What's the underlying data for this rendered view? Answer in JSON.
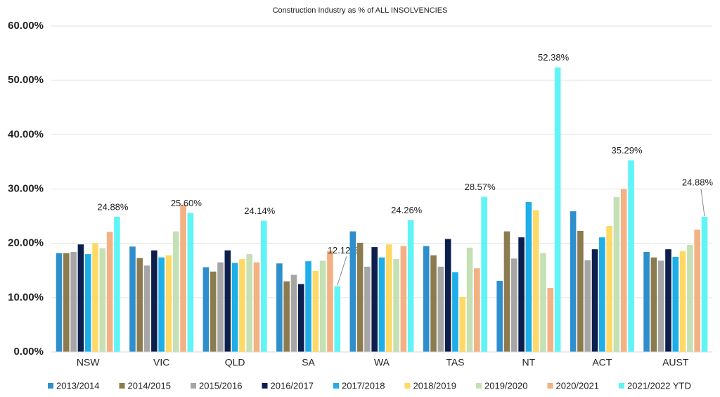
{
  "chart_data": {
    "type": "bar",
    "title": "Construction Industry as % of ALL INSOLVENCIES",
    "categories": [
      "NSW",
      "VIC",
      "QLD",
      "SA",
      "WA",
      "TAS",
      "NT",
      "ACT",
      "AUST"
    ],
    "series": [
      {
        "name": "2013/2014",
        "color": "#2e8fcc",
        "values": [
          18.2,
          19.4,
          15.6,
          16.3,
          22.2,
          19.5,
          13.1,
          25.9,
          18.4
        ]
      },
      {
        "name": "2014/2015",
        "color": "#8c7b4f",
        "values": [
          18.2,
          17.3,
          14.8,
          13.0,
          20.1,
          17.8,
          22.2,
          22.3,
          17.4
        ]
      },
      {
        "name": "2015/2016",
        "color": "#a6a6a6",
        "values": [
          18.4,
          15.9,
          16.5,
          14.2,
          15.7,
          15.7,
          17.2,
          16.9,
          16.8
        ]
      },
      {
        "name": "2016/2017",
        "color": "#0d1f4d",
        "values": [
          19.8,
          18.7,
          18.7,
          12.5,
          19.3,
          20.8,
          21.1,
          18.9,
          18.9
        ]
      },
      {
        "name": "2017/2018",
        "color": "#1eaee8",
        "values": [
          18.0,
          17.4,
          16.4,
          16.7,
          17.4,
          14.7,
          27.6,
          21.1,
          17.5
        ]
      },
      {
        "name": "2018/2019",
        "color": "#ffd966",
        "values": [
          20.0,
          17.8,
          17.1,
          14.9,
          19.8,
          10.1,
          26.1,
          23.2,
          18.6
        ]
      },
      {
        "name": "2019/2020",
        "color": "#c5e0b4",
        "values": [
          19.1,
          22.2,
          18.0,
          16.8,
          17.1,
          19.2,
          18.2,
          28.5,
          19.7
        ]
      },
      {
        "name": "2020/2021",
        "color": "#f4b183",
        "values": [
          22.1,
          27.1,
          16.5,
          18.6,
          19.5,
          15.4,
          11.8,
          30.0,
          22.5
        ]
      },
      {
        "name": "2021/2022 YTD",
        "color": "#5ff4f6",
        "values": [
          24.88,
          25.6,
          24.14,
          12.12,
          24.26,
          28.57,
          52.38,
          35.29,
          24.88
        ],
        "value_labels": [
          "24.88%",
          "25.60%",
          "24.14%",
          "12.12%",
          "24.26%",
          "28.57%",
          "52.38%",
          "35.29%",
          "24.88%"
        ]
      }
    ],
    "ylim": [
      0,
      60
    ],
    "yticks": [
      {
        "value": 0,
        "label": "0.00%"
      },
      {
        "value": 10,
        "label": "10.00%"
      },
      {
        "value": 20,
        "label": "20.00%"
      },
      {
        "value": 30,
        "label": "30.00%"
      },
      {
        "value": 40,
        "label": "40.00%"
      },
      {
        "value": 50,
        "label": "50.00%"
      },
      {
        "value": 60,
        "label": "60.00%"
      }
    ],
    "grid": true,
    "legend": "bottom"
  }
}
